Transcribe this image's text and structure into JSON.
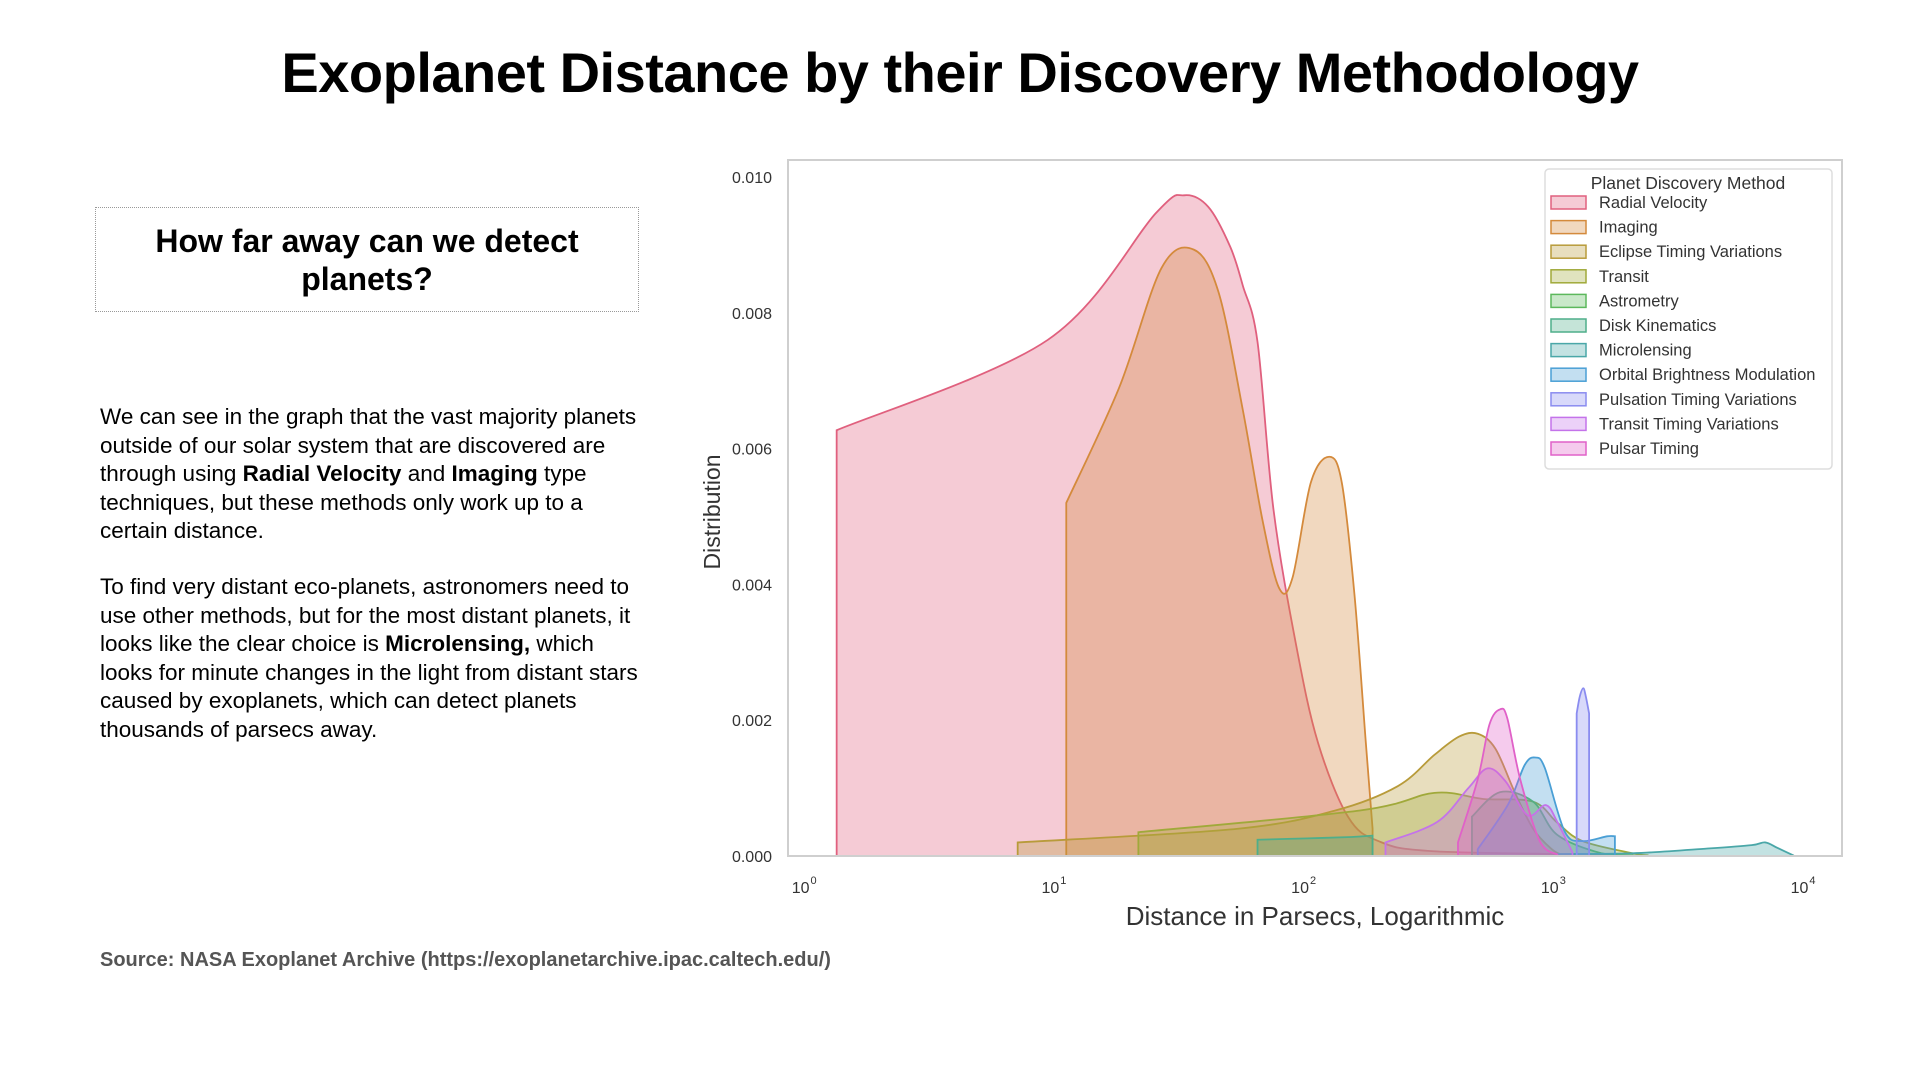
{
  "title": "Exoplanet Distance by their Discovery Methodology",
  "question": "How far away can we detect planets?",
  "paragraph1": [
    {
      "text": "We can see in the graph that the vast majority planets outside of our solar system that are discovered are through using ",
      "bold": false
    },
    {
      "text": "Radial Velocity",
      "bold": true
    },
    {
      "text": " and ",
      "bold": false
    },
    {
      "text": "Imaging",
      "bold": true
    },
    {
      "text": " type techniques, but these methods only work up to a certain distance.",
      "bold": false
    }
  ],
  "paragraph2": [
    {
      "text": "To find very distant eco-planets, astronomers need to use other methods, but for the most distant planets, it looks like the clear choice is ",
      "bold": false
    },
    {
      "text": "Microlensing,",
      "bold": true
    },
    {
      "text": " which looks for minute changes in the light from distant stars caused by exoplanets, which can detect planets thousands of parsecs away.",
      "bold": false
    }
  ],
  "source": "Source: NASA Exoplanet Archive (https://exoplanetarchive.ipac.caltech.edu/)",
  "chart_data": {
    "type": "area",
    "xscale": "log",
    "xlabel": "Distance in Parsecs, Logarithmic",
    "ylabel": "Distribution",
    "xlim": [
      0.83,
      13800
    ],
    "ylim": [
      0,
      0.01025
    ],
    "xticks": [
      {
        "base": "10",
        "exp": "0",
        "value": 1
      },
      {
        "base": "10",
        "exp": "1",
        "value": 10
      },
      {
        "base": "10",
        "exp": "2",
        "value": 100
      },
      {
        "base": "10",
        "exp": "3",
        "value": 1000
      },
      {
        "base": "10",
        "exp": "4",
        "value": 10000
      }
    ],
    "yticks": [
      {
        "label": "0.000",
        "value": 0
      },
      {
        "label": "0.002",
        "value": 0.002
      },
      {
        "label": "0.004",
        "value": 0.004
      },
      {
        "label": "0.006",
        "value": 0.006
      },
      {
        "label": "0.008",
        "value": 0.008
      },
      {
        "label": "0.010",
        "value": 0.01
      }
    ],
    "grid": false,
    "legend": {
      "title": "Planet Discovery Method",
      "placement": "top-right"
    },
    "series": [
      {
        "name": "Radial Velocity",
        "color": "#e0607e",
        "x": [
          1.3,
          9.1,
          24.7,
          32,
          40,
          49,
          55,
          63,
          73,
          90,
          110,
          145,
          192,
          320,
          1600
        ],
        "y": [
          0.00627,
          0.0076,
          0.00947,
          0.00973,
          0.00956,
          0.00897,
          0.0084,
          0.00757,
          0.0051,
          0.0031,
          0.00167,
          0.00058,
          0.00022,
          7e-05,
          2e-05
        ]
      },
      {
        "name": "Imaging",
        "color": "#d48a3c",
        "x": [
          10.8,
          17.6,
          26,
          35,
          44,
          55,
          66,
          77,
          87,
          103,
          122,
          137,
          154,
          171,
          182
        ],
        "y": [
          0.0052,
          0.0069,
          0.00866,
          0.00893,
          0.0083,
          0.00657,
          0.00494,
          0.00394,
          0.0041,
          0.0055,
          0.00588,
          0.0055,
          0.00385,
          0.00167,
          0.0004
        ]
      },
      {
        "name": "Eclipse Timing Variations",
        "color": "#b89b3a",
        "x": [
          6.9,
          52,
          129,
          230,
          322,
          405,
          480,
          565,
          675,
          800,
          950,
          1050
        ],
        "y": [
          0.0002,
          0.0004,
          0.00067,
          0.00103,
          0.00149,
          0.00176,
          0.0018,
          0.00158,
          0.00094,
          0.0004,
          0.0001,
          1e-05
        ]
      },
      {
        "name": "Transit",
        "color": "#a0a93a",
        "x": [
          21,
          162,
          322,
          505,
          800,
          1000,
          1260,
          2000,
          2300
        ],
        "y": [
          0.00035,
          0.00067,
          0.00093,
          0.00084,
          0.0008,
          0.00049,
          0.00022,
          4e-05,
          1e-05
        ]
      },
      {
        "name": "Astrometry",
        "color": "#5cb85c",
        "x": [
          455,
          590,
          800,
          1000,
          1500,
          2000
        ],
        "y": [
          0.00058,
          0.00094,
          0.0008,
          0.00031,
          4e-05,
          1e-05
        ]
      },
      {
        "name": "Disk Kinematics",
        "color": "#4fae8a",
        "x": [
          63,
          100,
          150,
          182
        ],
        "y": [
          0.00024,
          0.00026,
          0.00028,
          0.0003
        ]
      },
      {
        "name": "Microlensing",
        "color": "#4aa7a8",
        "x": [
          1000,
          2000,
          4000,
          6000,
          6800,
          7600,
          8800
        ],
        "y": [
          3e-05,
          4e-05,
          0.00011,
          0.00016,
          0.0002,
          0.00012,
          1e-05
        ]
      },
      {
        "name": "Orbital Brightness Modulation",
        "color": "#4a9fd5",
        "x": [
          480,
          635,
          740,
          815,
          890,
          1070,
          1260,
          1580,
          1700
        ],
        "y": [
          0.0001,
          0.00076,
          0.00134,
          0.00145,
          0.0013,
          0.00036,
          0.00022,
          0.00029,
          0.00029
        ]
      },
      {
        "name": "Pulsation Timing Variations",
        "color": "#8a8cf0",
        "x": [
          1195,
          1230,
          1270,
          1300,
          1340
        ],
        "y": [
          0.0021,
          0.00235,
          0.00247,
          0.00235,
          0.0021
        ]
      },
      {
        "name": "Transit Timing Variations",
        "color": "#c473ea",
        "x": [
          205,
          330,
          440,
          525,
          620,
          760,
          900,
          1000,
          1150
        ],
        "y": [
          0.0002,
          0.0005,
          0.001,
          0.00129,
          0.0011,
          0.0006,
          0.00075,
          0.0005,
          5e-05
        ]
      },
      {
        "name": "Pulsar Timing",
        "color": "#e061c8",
        "x": [
          400,
          480,
          535,
          590,
          630,
          710,
          850,
          1000
        ],
        "y": [
          0.0002,
          0.00113,
          0.00194,
          0.00216,
          0.00203,
          0.00113,
          0.00022,
          2e-05
        ]
      }
    ]
  }
}
